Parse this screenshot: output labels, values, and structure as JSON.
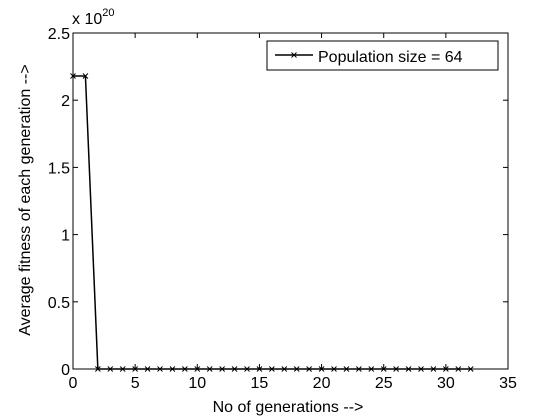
{
  "chart_data": {
    "type": "line",
    "xlabel": "No of generations -->",
    "ylabel": "Average fitness of each generation -->",
    "xlim": [
      0,
      35
    ],
    "ylim": [
      0,
      2.5
    ],
    "y_multiplier": "x 10^20",
    "y_multiplier_base": "x 10",
    "y_multiplier_exp": "20",
    "grid": false,
    "legend_position": "top-right",
    "x_ticks": [
      "0",
      "5",
      "10",
      "15",
      "20",
      "25",
      "30",
      "35"
    ],
    "y_ticks": [
      "0",
      "0.5",
      "1",
      "1.5",
      "2",
      "2.5"
    ],
    "series": [
      {
        "name": "Population size = 64",
        "color": "#000000",
        "marker": "x",
        "x": [
          0,
          1,
          2,
          3,
          4,
          5,
          6,
          7,
          8,
          9,
          10,
          11,
          12,
          13,
          14,
          15,
          16,
          17,
          18,
          19,
          20,
          21,
          22,
          23,
          24,
          25,
          26,
          27,
          28,
          29,
          30,
          31,
          32
        ],
        "y": [
          2.18,
          2.18,
          0,
          0,
          0,
          0,
          0,
          0,
          0,
          0,
          0,
          0,
          0,
          0,
          0,
          0,
          0,
          0,
          0,
          0,
          0,
          0,
          0,
          0,
          0,
          0,
          0,
          0,
          0,
          0,
          0,
          0,
          0
        ]
      }
    ]
  }
}
